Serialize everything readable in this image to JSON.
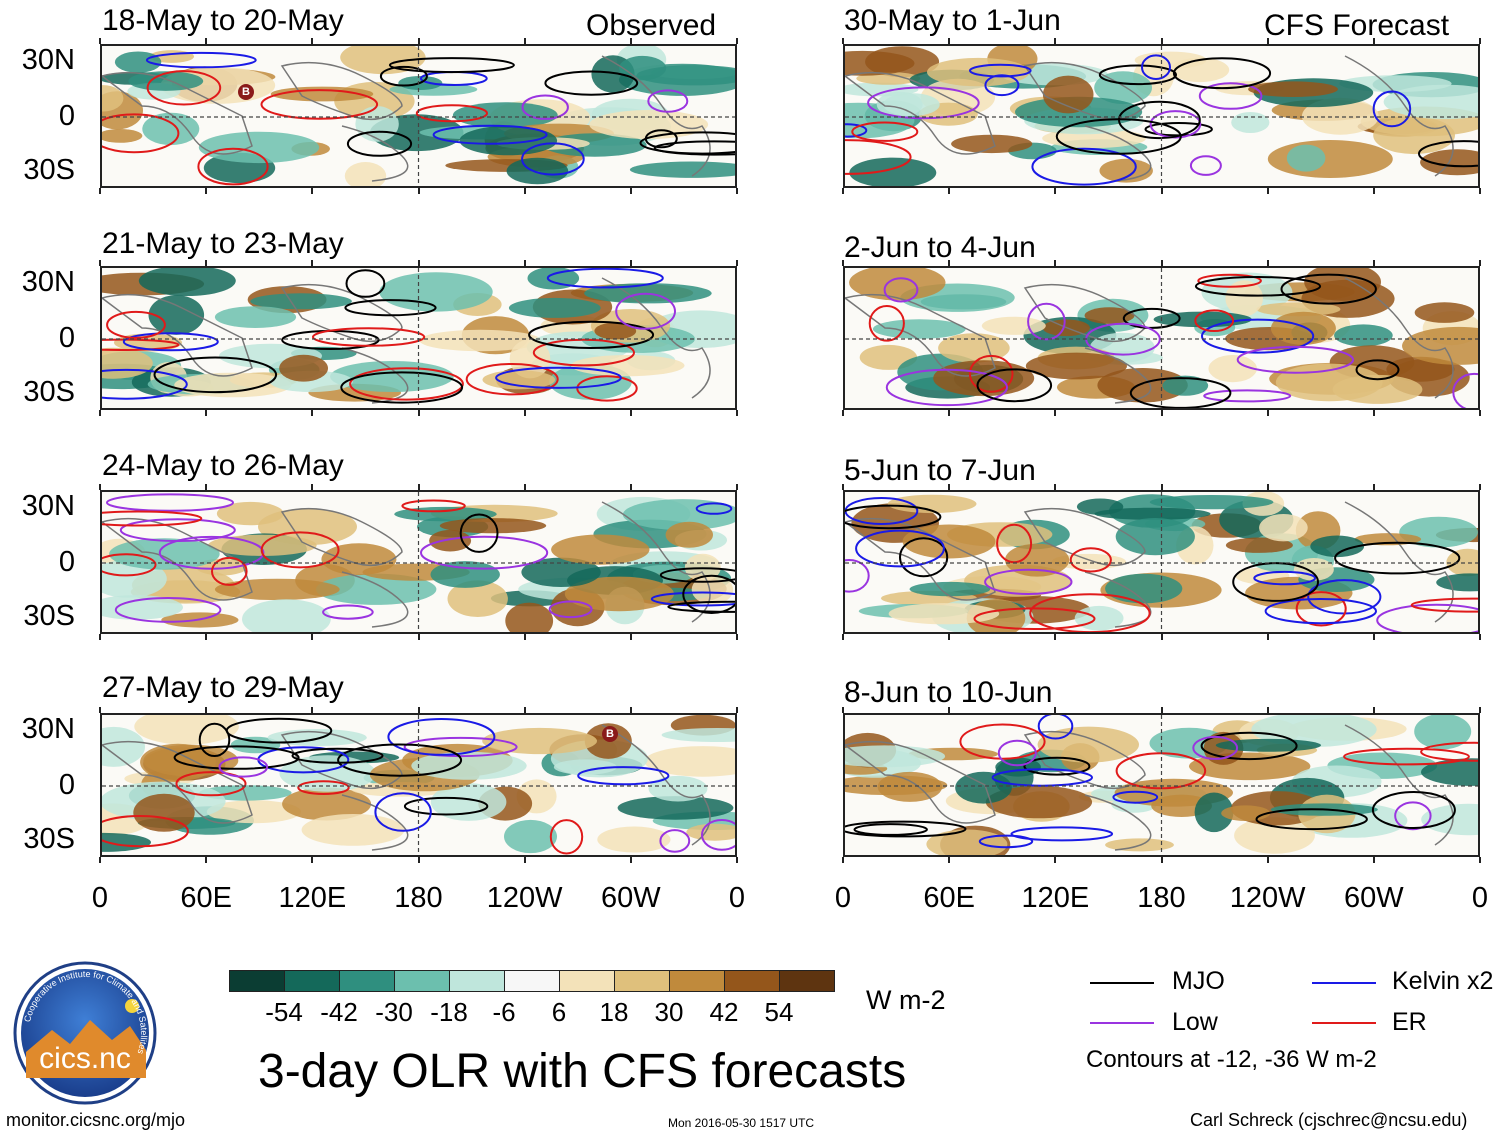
{
  "figure": {
    "title": "3-day OLR with CFS forecasts",
    "units": "W m-2",
    "contour_note": "Contours at -12, -36 W m-2",
    "observed_label": "Observed",
    "forecast_label": "CFS Forecast"
  },
  "panels_observed": [
    {
      "period": "18-May to 20-May"
    },
    {
      "period": "21-May to 23-May"
    },
    {
      "period": "24-May to 26-May"
    },
    {
      "period": "27-May to 29-May"
    }
  ],
  "panels_forecast": [
    {
      "period": "30-May to 1-Jun"
    },
    {
      "period": "2-Jun to 4-Jun"
    },
    {
      "period": "5-Jun to 7-Jun"
    },
    {
      "period": "8-Jun to 10-Jun"
    }
  ],
  "lat_labels": [
    "30N",
    "0",
    "30S"
  ],
  "lon_labels": [
    "0",
    "60E",
    "120E",
    "180",
    "120W",
    "60W",
    "0"
  ],
  "colorbar": {
    "colors": [
      "#0b3d33",
      "#14695a",
      "#2f8f7f",
      "#6cbfae",
      "#bfe6dc",
      "#f7f7f7",
      "#f3e2b9",
      "#dfc07c",
      "#c08a3c",
      "#94561b",
      "#5e3410"
    ],
    "tick_labels": [
      "-54",
      "-42",
      "-30",
      "-18",
      "-6",
      "6",
      "18",
      "30",
      "42",
      "54"
    ]
  },
  "legend": {
    "mjo": {
      "label": "MJO",
      "color": "#000000"
    },
    "kelvin": {
      "label": "Kelvin x2",
      "color": "#1a1ae6"
    },
    "low": {
      "label": "Low",
      "color": "#9a34e0"
    },
    "er": {
      "label": "ER",
      "color": "#e01a1a"
    }
  },
  "storm_marker": "B",
  "logo_text": "cics.nc",
  "logo_ring_text": "Cooperative Institute for Climate and Satellites",
  "footer": {
    "url": "monitor.cicsnc.org/mjo",
    "timestamp": "Mon 2016-05-30 1517 UTC",
    "author": "Carl Schreck (cjschrec@ncsu.edu)"
  }
}
